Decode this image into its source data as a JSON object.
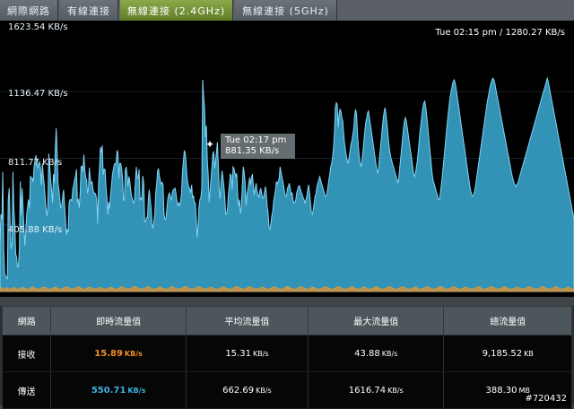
{
  "tabs": [
    {
      "label": "網際網路"
    },
    {
      "label": "有線連接"
    },
    {
      "label": "無線連接 (2.4GHz)",
      "active": true
    },
    {
      "label": "無線連接 (5GHz)"
    }
  ],
  "graph": {
    "status": "Tue 02:15 pm / 1280.27 KB/s",
    "y_labels": [
      "1623.54 KB/s",
      "1136.47 KB/s",
      "811.77 KB/s",
      "405.88 KB/s"
    ],
    "tooltip": {
      "time": "Tue 02:17 pm",
      "value": "881.35 KB/s"
    },
    "tooltip_marker": "✦",
    "colors": {
      "area": "#3aa7cf",
      "rx": "#f08d24",
      "tx": "#3db0df"
    },
    "tx_series": [
      290,
      470,
      440,
      730,
      270,
      110,
      95,
      85,
      78,
      560,
      630,
      410,
      260,
      290,
      730,
      510,
      420,
      230,
      210,
      150,
      155,
      250,
      670,
      465,
      630,
      510,
      390,
      280,
      380,
      470,
      520,
      560,
      505,
      705,
      690,
      690,
      665,
      760,
      800,
      830,
      780,
      750,
      780,
      790,
      745,
      650,
      780,
      700,
      655,
      575,
      505,
      460,
      520,
      840,
      760,
      680,
      620,
      540,
      715,
      660,
      870,
      995,
      845,
      660,
      620,
      555,
      510,
      520,
      580,
      620,
      540,
      455,
      345,
      380,
      360,
      540,
      560,
      560,
      555,
      625,
      650,
      685,
      700,
      745,
      550,
      560,
      510,
      600,
      760,
      765,
      730,
      835,
      745,
      695,
      680,
      600,
      625,
      755,
      690,
      655,
      670,
      620,
      600,
      600,
      590,
      560,
      415,
      660,
      750,
      880,
      840,
      890,
      710,
      745,
      745,
      645,
      575,
      470,
      545,
      505,
      590,
      645,
      710,
      745,
      775,
      780,
      775,
      860,
      845,
      690,
      780,
      780,
      750,
      690,
      555,
      560,
      740,
      760,
      705,
      640,
      700,
      670,
      610,
      575,
      560,
      540,
      555,
      680,
      760,
      690,
      690,
      745,
      560,
      570,
      560,
      705,
      655,
      430,
      425,
      450,
      450,
      565,
      620,
      565,
      505,
      410,
      385,
      430,
      470,
      605,
      645,
      735,
      750,
      705,
      675,
      655,
      665,
      650,
      470,
      440,
      440,
      495,
      560,
      590,
      600,
      575,
      560,
      600,
      620,
      625,
      630,
      600,
      555,
      520,
      540,
      525,
      545,
      600,
      725,
      790,
      860,
      845,
      780,
      700,
      650,
      635,
      625,
      600,
      650,
      570,
      585,
      540,
      540,
      440,
      330,
      405,
      520,
      560,
      570,
      630,
      1290,
      1190,
      1120,
      940,
      1010,
      805,
      705,
      545,
      610,
      680,
      760,
      840,
      850,
      750,
      800,
      850,
      910,
      760,
      620,
      565,
      670,
      735,
      695,
      645,
      570,
      470,
      475,
      505,
      600,
      655,
      715,
      710,
      620,
      760,
      750,
      720,
      700,
      720,
      590,
      520,
      560,
      475,
      515,
      650,
      760,
      730,
      660,
      525,
      590,
      620,
      660,
      695,
      650,
      695,
      715,
      640,
      590,
      630,
      660,
      610,
      590,
      570,
      610,
      630,
      600,
      570,
      570,
      600,
      640,
      600,
      520,
      480,
      390,
      380,
      410,
      460,
      490,
      550,
      580,
      620,
      670,
      655,
      670,
      690,
      760,
      730,
      700,
      670,
      640,
      600,
      580,
      580,
      630,
      640,
      660,
      630,
      590,
      600,
      560,
      540,
      540,
      560,
      600,
      620,
      640,
      645,
      625,
      605,
      590,
      570,
      560,
      540,
      560,
      580,
      620,
      650,
      600,
      540,
      480,
      470,
      500,
      540,
      580,
      600,
      640,
      660,
      680,
      700,
      680,
      660,
      640,
      620,
      600,
      580,
      580,
      600,
      640,
      680,
      720,
      760,
      780,
      820,
      880,
      970,
      1120,
      1150,
      1140,
      1000,
      1080,
      1110,
      1100,
      1060,
      1040,
      960,
      900,
      860,
      820,
      800,
      780,
      820,
      860,
      900,
      920,
      960,
      1000,
      1080,
      1110,
      1080,
      960,
      880,
      820,
      780,
      760,
      800,
      860,
      920,
      980,
      1030,
      1060,
      1090,
      1100,
      1060,
      1020,
      980,
      940,
      900,
      860,
      820,
      780,
      740,
      720,
      760,
      820,
      880,
      940,
      1000,
      1060,
      1100,
      1120,
      1080,
      1020,
      960,
      900,
      860,
      820,
      800,
      780,
      760,
      740,
      720,
      700,
      680,
      660,
      700,
      760,
      820,
      880,
      940,
      1000,
      1040,
      1060,
      1040,
      1000,
      960,
      920,
      880,
      840,
      800,
      760,
      720,
      700,
      720,
      760,
      800,
      860,
      920,
      980,
      1030,
      1080,
      1120,
      1150,
      1160,
      1130,
      1080,
      1020,
      960,
      900,
      840,
      780,
      720,
      680,
      660,
      640,
      620,
      600,
      580,
      560,
      560,
      600,
      650,
      700,
      760,
      820,
      880,
      940,
      1000,
      1060,
      1110,
      1160,
      1200,
      1230,
      1260,
      1280,
      1290,
      1270,
      1240,
      1200,
      1160,
      1120,
      1080,
      1040,
      1000,
      960,
      920,
      880,
      840,
      800,
      760,
      720,
      680,
      640,
      610,
      590,
      580,
      590,
      610,
      640,
      680,
      720,
      760,
      800,
      840,
      880,
      920,
      960,
      1000,
      1040,
      1080,
      1120,
      1160,
      1190,
      1220,
      1250,
      1270,
      1290,
      1300,
      1290,
      1270,
      1240,
      1210,
      1180,
      1150,
      1120,
      1090,
      1060,
      1030,
      1000,
      970,
      940,
      910,
      880,
      850,
      820,
      790,
      760,
      730,
      700,
      680,
      660,
      650,
      640,
      650,
      660,
      680,
      700,
      720,
      740,
      760,
      780,
      800,
      820,
      840,
      860,
      880,
      900,
      920,
      940,
      960,
      980,
      1000,
      1020,
      1040,
      1060,
      1080,
      1100,
      1120,
      1140,
      1160,
      1180,
      1200,
      1220,
      1240,
      1260,
      1280,
      1300,
      1280,
      1250,
      1220,
      1190,
      1160,
      1130,
      1100,
      1070,
      1040,
      1010,
      980,
      950,
      920,
      890,
      860,
      830,
      800,
      770,
      740,
      710,
      680,
      650,
      620,
      590,
      560,
      530,
      500,
      470,
      440
    ],
    "rx_series": [
      18,
      20,
      26,
      24,
      18,
      16,
      14,
      16,
      20,
      22,
      25,
      20,
      18,
      17,
      15,
      14,
      16,
      18,
      21,
      23,
      26,
      24,
      21,
      19,
      17,
      16,
      15,
      14,
      15,
      17,
      19,
      22,
      25,
      28,
      26,
      23,
      20,
      18,
      16,
      15,
      14,
      15,
      16,
      18,
      20,
      23,
      25,
      27,
      29,
      28,
      26,
      23,
      20,
      18,
      16,
      15,
      14,
      15,
      16,
      18,
      20,
      22,
      24,
      26,
      28,
      27,
      25,
      23,
      21,
      19,
      17,
      16,
      15,
      14,
      15,
      17,
      19,
      21,
      23,
      25,
      27,
      28,
      26,
      24,
      22,
      20,
      18,
      16,
      15,
      14,
      15,
      16,
      18,
      20,
      22,
      24,
      26,
      28,
      30,
      29,
      27,
      25,
      23,
      21,
      19,
      17,
      15,
      14,
      15,
      17,
      19,
      21,
      23,
      25,
      27,
      29,
      28,
      26,
      24,
      22,
      20,
      18,
      16,
      15,
      14,
      15,
      16,
      18,
      20,
      22,
      24,
      26,
      28,
      27,
      25,
      23,
      21,
      19,
      17,
      16,
      15,
      14,
      15,
      17,
      19,
      21,
      23,
      25,
      26,
      24,
      22,
      20,
      18,
      16,
      15,
      14,
      15,
      16,
      18,
      20,
      22,
      24,
      26,
      27,
      25,
      23,
      21,
      19,
      17,
      16,
      15,
      14,
      15,
      17,
      19,
      21,
      23,
      25,
      27,
      29,
      28,
      26,
      24,
      22,
      20,
      18,
      16,
      15,
      14,
      15,
      16,
      18,
      20,
      22,
      24,
      26,
      28,
      30,
      31,
      29,
      27,
      25,
      23,
      21,
      19,
      17,
      16,
      15,
      14,
      15,
      16,
      18,
      20,
      22,
      24,
      26,
      28,
      30,
      29,
      27,
      25,
      23,
      21,
      19,
      17,
      16,
      15,
      14,
      15,
      16,
      18,
      20,
      22,
      24,
      26,
      28,
      27,
      25,
      23,
      21,
      19,
      17,
      16,
      15,
      14,
      15,
      16,
      18,
      20,
      22,
      24,
      26,
      28,
      30,
      29,
      27,
      25,
      23,
      21,
      19,
      17,
      16,
      15,
      14,
      15,
      16,
      18,
      20,
      22,
      24,
      26,
      28,
      30,
      31,
      29,
      27,
      25,
      23,
      21,
      19,
      17,
      16,
      15,
      14,
      15,
      16,
      18,
      20,
      22,
      24,
      26,
      28,
      30,
      29,
      27,
      25,
      23,
      21,
      19,
      17,
      16,
      15,
      14,
      15,
      16,
      18,
      20,
      22,
      24,
      26,
      28,
      27,
      25,
      23,
      21,
      19,
      17,
      16,
      15,
      14,
      15,
      16,
      18,
      20,
      22,
      24,
      26,
      28,
      30,
      29,
      27,
      25,
      23,
      21,
      19,
      17,
      16,
      15,
      14,
      15,
      16,
      18,
      20,
      22,
      24,
      26,
      28,
      30,
      31,
      29,
      27,
      25,
      23,
      21,
      19,
      17,
      16,
      15,
      14,
      15,
      16,
      18,
      20,
      22,
      24,
      26,
      28,
      30,
      29,
      27,
      25,
      23,
      21,
      19,
      17,
      16,
      15,
      14,
      15,
      16,
      18,
      20,
      22,
      24,
      26,
      28,
      27,
      25,
      23,
      21,
      19,
      17,
      16,
      15,
      14,
      15,
      16,
      18,
      20,
      22,
      24,
      26,
      28,
      30,
      29,
      27,
      25,
      23,
      21,
      19,
      17,
      16,
      15,
      14,
      15,
      16,
      18,
      20,
      22,
      24,
      26,
      28,
      30,
      31,
      29,
      27,
      25,
      23,
      21,
      19,
      17,
      16,
      15,
      14,
      15,
      16,
      18,
      20,
      22,
      24,
      26,
      28,
      30,
      29,
      27,
      25,
      23,
      21,
      19,
      17,
      16,
      15,
      14,
      15,
      16,
      18,
      20,
      22,
      24,
      26,
      28,
      27,
      25,
      23,
      21,
      19,
      17,
      16,
      15,
      14,
      15,
      16,
      18,
      20,
      22,
      24,
      26,
      28,
      30,
      29,
      27,
      25,
      23,
      21,
      19,
      17,
      16,
      15,
      14,
      15,
      16,
      18,
      20,
      22,
      24,
      26,
      28,
      30,
      31,
      29,
      27,
      25,
      23,
      21,
      19,
      17,
      16,
      15,
      14,
      15,
      16,
      18,
      20,
      22,
      24,
      26,
      28,
      30,
      29,
      27,
      25,
      23,
      21,
      19,
      17,
      16,
      15,
      14,
      15,
      16,
      18,
      20,
      22,
      24,
      26,
      28,
      27,
      25,
      23,
      21,
      19,
      17,
      16,
      15,
      14,
      15,
      16,
      18,
      20,
      22,
      24,
      26,
      28,
      30,
      29,
      27,
      25,
      23,
      21,
      19,
      17,
      16,
      15,
      14,
      15,
      16,
      18,
      20,
      22,
      24,
      26,
      28,
      30,
      31,
      29,
      27,
      25,
      23,
      21,
      19,
      17,
      16,
      15,
      14,
      15,
      16,
      18,
      20,
      22,
      24,
      26,
      28,
      30,
      29,
      27,
      25,
      23,
      21,
      19,
      17,
      16,
      15,
      14,
      15,
      16,
      18,
      20,
      22,
      24,
      26,
      28,
      27,
      25,
      23,
      21,
      19,
      17,
      16,
      15,
      14,
      15,
      16,
      18,
      20,
      22,
      24,
      26,
      28,
      30,
      29,
      27,
      25,
      23,
      21,
      19,
      17,
      16,
      15,
      14,
      15,
      16,
      18,
      20,
      22,
      24,
      26,
      28,
      30,
      31,
      29,
      27,
      25,
      23,
      21,
      19,
      17,
      16,
      15,
      14,
      15,
      16,
      18,
      20,
      22,
      24,
      26,
      28,
      30,
      29,
      27,
      25,
      23,
      21,
      19,
      17,
      16,
      15,
      14,
      15,
      16,
      18,
      20,
      22,
      24,
      26,
      28,
      27,
      25,
      23,
      21,
      19,
      17,
      16,
      15,
      14,
      15,
      16,
      18,
      20,
      22,
      24,
      26,
      28,
      30,
      29,
      27,
      25,
      23,
      21,
      19,
      17,
      16,
      15,
      14,
      15,
      16,
      18,
      20,
      22,
      24,
      26,
      28,
      30,
      31,
      29,
      27,
      25,
      23,
      21,
      19,
      17,
      16,
      15,
      14,
      15,
      16,
      18,
      20,
      22,
      24,
      26,
      28,
      30,
      29,
      27,
      25,
      23,
      21,
      19,
      17,
      16,
      15,
      14,
      15,
      16,
      18,
      20,
      22,
      24,
      26,
      28,
      27,
      25,
      23,
      21,
      19,
      17,
      16,
      15,
      14,
      15,
      16,
      18,
      20,
      22,
      24,
      26,
      28,
      30,
      29,
      27,
      25,
      23,
      21,
      19,
      17,
      16,
      15,
      14,
      15,
      16,
      18,
      20,
      22,
      24,
      26,
      28,
      30,
      31,
      29,
      27,
      25,
      23,
      21,
      19,
      17,
      16,
      15,
      14,
      15,
      16,
      18,
      20,
      22,
      24,
      26,
      28,
      30,
      29,
      27,
      25,
      23,
      21,
      19,
      17,
      16,
      15,
      14,
      15,
      16,
      18,
      20,
      22,
      24,
      26,
      28,
      27,
      25,
      23,
      21,
      19,
      17,
      16,
      15,
      14
    ],
    "y_max": 1623.54
  },
  "table": {
    "headers": [
      "網路",
      "即時流量值",
      "平均流量值",
      "最大流量值",
      "總流量值"
    ],
    "rows": [
      {
        "name": "接收",
        "instant": "15.89",
        "instant_unit": "KB/s",
        "avg": "15.31",
        "avg_unit": "KB/s",
        "max": "43.88",
        "max_unit": "KB/s",
        "total": "9,185.52",
        "total_unit": "KB"
      },
      {
        "name": "傳送",
        "instant": "550.71",
        "instant_unit": "KB/s",
        "avg": "662.69",
        "avg_unit": "KB/s",
        "max": "1616.74",
        "max_unit": "KB/s",
        "total": "388.30",
        "total_unit": "MB"
      }
    ]
  },
  "watermark": "#720432"
}
